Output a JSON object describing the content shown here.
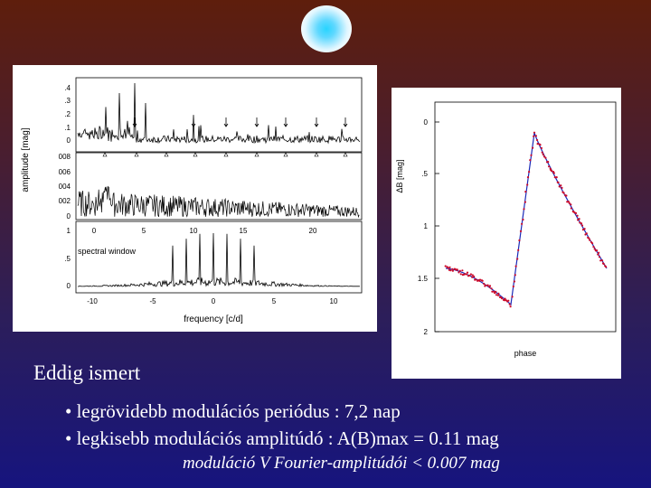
{
  "logo_icon": "blue-glow-logo",
  "fourier_figure": {
    "y_axis_label": "amplitude [mag]",
    "x_axis_label": "frequency [c/d]",
    "spectral_window_label": "spectral window",
    "panel_top_ticks": [
      ".4",
      ".3",
      ".2",
      ".1",
      "0"
    ],
    "panel_mid_ticks": [
      "008",
      "006",
      "004",
      "002",
      "0"
    ],
    "panel_bottom_ticks": [
      "1",
      ".5",
      "0"
    ],
    "x_ticks_upper": [
      "0",
      "5",
      "10",
      "15",
      "20"
    ],
    "x_ticks_lower": [
      "-10",
      "-5",
      "0",
      "5",
      "10"
    ]
  },
  "light_curve": {
    "y_axis_label": "ΔB [mag]",
    "x_axis_label": "phase",
    "y_ticks": [
      "0",
      ".5",
      "1",
      "1.5",
      "2"
    ],
    "point_color": "#cc0a2a",
    "fit_color": "#1a2ab8"
  },
  "slide": {
    "heading": "Eddig ismert",
    "bullets": [
      "• legrövidebb modulációs periódus :   7,2 nap",
      "• legkisebb modulációs amplitúdó :  A(B)max = 0.11 mag"
    ],
    "note": "moduláció  V Fourier-amplitúdói < 0.007 mag"
  }
}
